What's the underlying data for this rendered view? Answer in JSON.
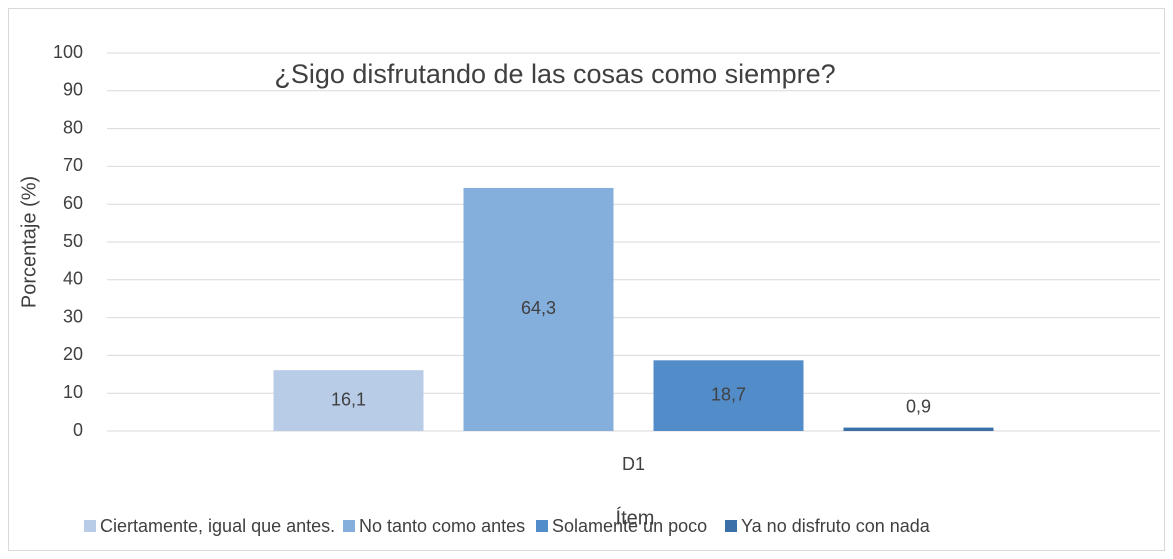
{
  "chart_data": {
    "type": "bar",
    "title": "¿Sigo disfrutando de las cosas como siempre?",
    "x_label": "Ítem",
    "y_label": "Porcentaje (%)",
    "categories": [
      "D1"
    ],
    "series": [
      {
        "name": "Ciertamente, igual que antes.",
        "color": "#b8cce8",
        "values": [
          16.1
        ],
        "value_labels": [
          "16,1"
        ]
      },
      {
        "name": "No tanto como antes",
        "color": "#84aedb",
        "values": [
          64.3
        ],
        "value_labels": [
          "64,3"
        ]
      },
      {
        "name": "Solamente un poco",
        "color": "#538dc9",
        "values": [
          18.7
        ],
        "value_labels": [
          "18,7"
        ]
      },
      {
        "name": "Ya no disfruto con nada",
        "color": "#3b6fa8",
        "values": [
          0.9
        ],
        "value_labels": [
          "0,9"
        ]
      }
    ],
    "ylim": [
      0,
      100
    ],
    "yticks": [
      0,
      10,
      20,
      30,
      40,
      50,
      60,
      70,
      80,
      90,
      100
    ],
    "grid": true,
    "legend": "bottom"
  }
}
